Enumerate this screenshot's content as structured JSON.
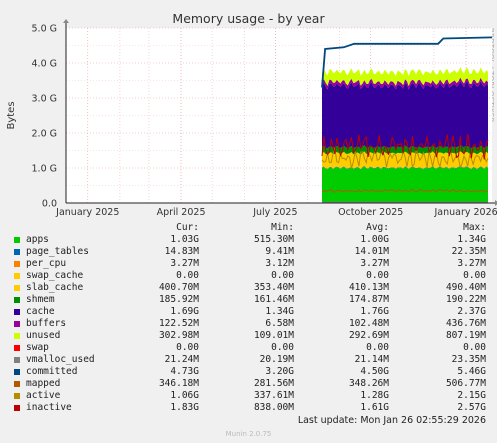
{
  "chart_data": {
    "type": "area",
    "title": "Memory usage - by year",
    "ylabel": "Bytes",
    "ylim": [
      0,
      5.0
    ],
    "y_unit": "G bytes",
    "yticks": [
      "0.0",
      "1.0 G",
      "2.0 G",
      "3.0 G",
      "4.0 G",
      "5.0 G"
    ],
    "xticks": [
      "January 2025",
      "April 2025",
      "July 2025",
      "October 2025",
      "January 2026"
    ],
    "x_range": [
      "2024-12-11",
      "2026-01-26"
    ],
    "data_start": "2025-08-15",
    "grid": true,
    "watermark": "RRDTOOL / TOBI OETIKER",
    "stacked_series": [
      {
        "name": "apps",
        "color": "#00cc00",
        "value_G": 1.0
      },
      {
        "name": "page_tables",
        "color": "#0066b3",
        "value_G": 0.014
      },
      {
        "name": "per_cpu",
        "color": "#ff8000",
        "value_G": 0.003
      },
      {
        "name": "swap_cache",
        "color": "#ffcc00",
        "value_G": 0.0
      },
      {
        "name": "slab_cache",
        "color": "#ffcc00",
        "value_G": 0.41
      },
      {
        "name": "shmem",
        "color": "#008f00",
        "value_G": 0.175
      },
      {
        "name": "cache",
        "color": "#330099",
        "value_G": 1.76
      },
      {
        "name": "buffers",
        "color": "#990099",
        "value_G": 0.1
      },
      {
        "name": "unused",
        "color": "#ccff00",
        "value_G": 0.29
      },
      {
        "name": "swap",
        "color": "#ff0000",
        "value_G": 0.0
      }
    ],
    "line_series": [
      {
        "name": "vmalloc_used",
        "color": "#808080",
        "value_G": 0.021
      },
      {
        "name": "committed",
        "color": "#00487d",
        "points": [
          [
            "2025-08-15",
            3.3
          ],
          [
            "2025-08-18",
            4.4
          ],
          [
            "2025-09-05",
            4.45
          ],
          [
            "2025-09-15",
            4.55
          ],
          [
            "2025-12-05",
            4.55
          ],
          [
            "2025-12-10",
            4.7
          ],
          [
            "2026-01-26",
            4.73
          ]
        ]
      },
      {
        "name": "mapped",
        "color": "#b35a00",
        "value_G": 0.35
      },
      {
        "name": "active",
        "color": "#b38f00",
        "value_G": 1.28
      },
      {
        "name": "inactive",
        "color": "#bc0000",
        "value_G": 1.61
      }
    ]
  },
  "legend": {
    "headers": {
      "cur": "Cur:",
      "min": "Min:",
      "avg": "Avg:",
      "max": "Max:"
    },
    "rows": [
      {
        "label": "apps",
        "color": "#00cc00",
        "cur": "1.03G",
        "min": "515.30M",
        "avg": "1.00G",
        "max": "1.34G"
      },
      {
        "label": "page_tables",
        "color": "#0066b3",
        "cur": "14.83M",
        "min": "9.41M",
        "avg": "14.01M",
        "max": "22.35M"
      },
      {
        "label": "per_cpu",
        "color": "#ff8000",
        "cur": "3.27M",
        "min": "3.12M",
        "avg": "3.27M",
        "max": "3.27M"
      },
      {
        "label": "swap_cache",
        "color": "#ffcc00",
        "cur": "0.00",
        "min": "0.00",
        "avg": "0.00",
        "max": "0.00"
      },
      {
        "label": "slab_cache",
        "color": "#ffcc00",
        "cur": "400.70M",
        "min": "353.40M",
        "avg": "410.13M",
        "max": "490.40M"
      },
      {
        "label": "shmem",
        "color": "#008f00",
        "cur": "185.92M",
        "min": "161.46M",
        "avg": "174.87M",
        "max": "190.22M"
      },
      {
        "label": "cache",
        "color": "#330099",
        "cur": "1.69G",
        "min": "1.34G",
        "avg": "1.76G",
        "max": "2.37G"
      },
      {
        "label": "buffers",
        "color": "#990099",
        "cur": "122.52M",
        "min": "6.58M",
        "avg": "102.48M",
        "max": "436.76M"
      },
      {
        "label": "unused",
        "color": "#ccff00",
        "cur": "302.98M",
        "min": "109.01M",
        "avg": "292.69M",
        "max": "807.19M"
      },
      {
        "label": "swap",
        "color": "#ff0000",
        "cur": "0.00",
        "min": "0.00",
        "avg": "0.00",
        "max": "0.00"
      },
      {
        "label": "vmalloc_used",
        "color": "#808080",
        "cur": "21.24M",
        "min": "20.19M",
        "avg": "21.14M",
        "max": "23.35M"
      },
      {
        "label": "committed",
        "color": "#00487d",
        "cur": "4.73G",
        "min": "3.20G",
        "avg": "4.50G",
        "max": "5.46G"
      },
      {
        "label": "mapped",
        "color": "#b35a00",
        "cur": "346.18M",
        "min": "281.56M",
        "avg": "348.26M",
        "max": "506.77M"
      },
      {
        "label": "active",
        "color": "#b38f00",
        "cur": "1.06G",
        "min": "337.61M",
        "avg": "1.28G",
        "max": "2.15G"
      },
      {
        "label": "inactive",
        "color": "#bc0000",
        "cur": "1.83G",
        "min": "838.00M",
        "avg": "1.61G",
        "max": "2.57G"
      }
    ]
  },
  "last_update": "Last update: Mon Jan 26 02:55:29 2026",
  "footer": "Munin 2.0.75"
}
